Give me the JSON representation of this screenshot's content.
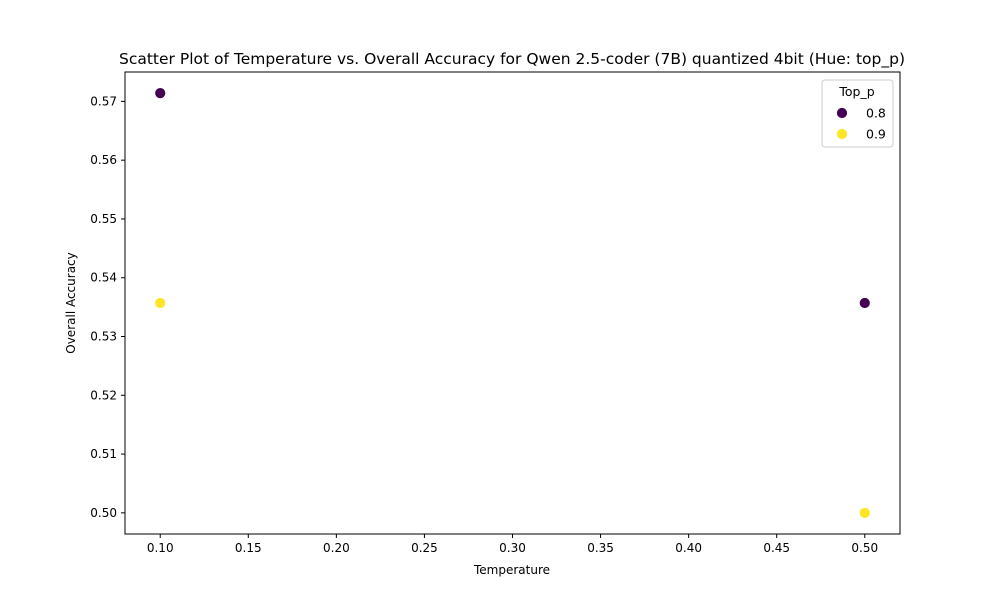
{
  "chart_data": {
    "type": "scatter",
    "title": "Scatter Plot of Temperature vs. Overall Accuracy for Qwen 2.5-coder (7B) quantized 4bit (Hue: top_p)",
    "xlabel": "Temperature",
    "ylabel": "Overall Accuracy",
    "xlim": [
      0.08,
      0.52
    ],
    "ylim": [
      0.4964,
      0.575
    ],
    "xticks": [
      "0.10",
      "0.15",
      "0.20",
      "0.25",
      "0.30",
      "0.35",
      "0.40",
      "0.45",
      "0.50"
    ],
    "yticks": [
      "0.50",
      "0.51",
      "0.52",
      "0.53",
      "0.54",
      "0.55",
      "0.56",
      "0.57"
    ],
    "grid": false,
    "legend": {
      "title": "Top_p",
      "placement": "top-right"
    },
    "series": [
      {
        "name": "0.8",
        "color": "#440154",
        "points": [
          {
            "x": 0.1,
            "y": 0.5714
          },
          {
            "x": 0.5,
            "y": 0.5357
          }
        ]
      },
      {
        "name": "0.9",
        "color": "#fde725",
        "points": [
          {
            "x": 0.1,
            "y": 0.5357
          },
          {
            "x": 0.5,
            "y": 0.5
          }
        ]
      }
    ]
  }
}
